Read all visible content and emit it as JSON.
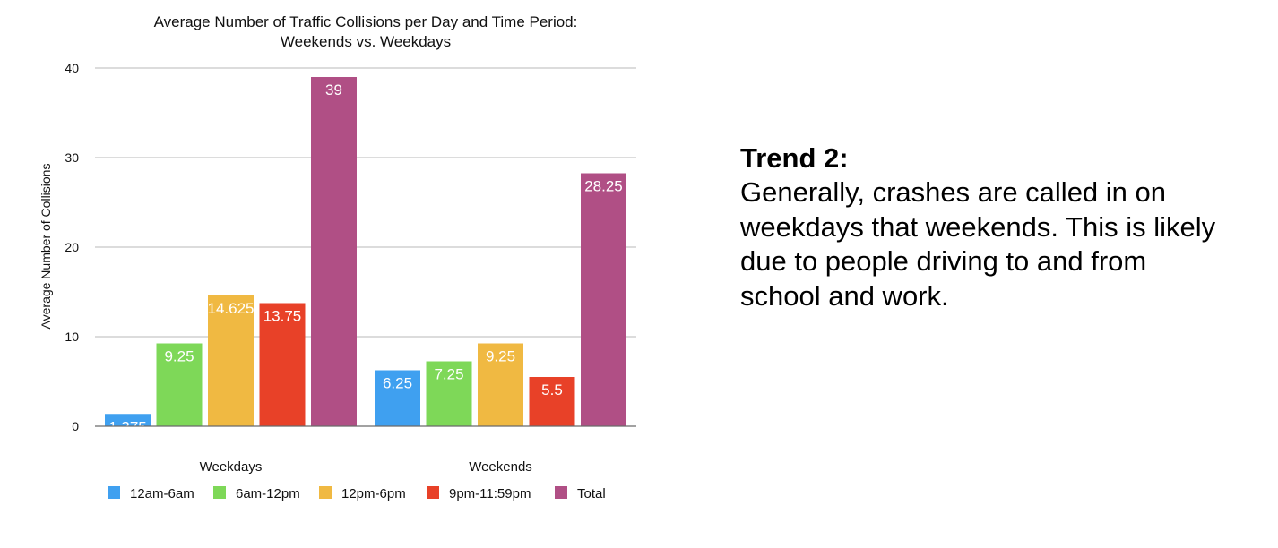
{
  "chart_data": {
    "type": "bar",
    "title": [
      "Average Number of Traffic Collisions per Day and Time Period:",
      "Weekends vs. Weekdays"
    ],
    "xlabel": "",
    "ylabel": "Average Number of Collisions",
    "ylim": [
      0,
      40
    ],
    "yticks": [
      0,
      10,
      20,
      30,
      40
    ],
    "grid": true,
    "legend_position": "bottom",
    "categories": [
      "Weekdays",
      "Weekends"
    ],
    "series": [
      {
        "name": "12am-6am",
        "color": "#3fa0f0",
        "values": [
          1.375,
          6.25
        ],
        "labels": [
          "1.375",
          "6.25"
        ]
      },
      {
        "name": "6am-12pm",
        "color": "#7ed858",
        "values": [
          9.25,
          7.25
        ],
        "labels": [
          "9.25",
          "7.25"
        ]
      },
      {
        "name": "12pm-6pm",
        "color": "#f0b942",
        "values": [
          14.625,
          9.25
        ],
        "labels": [
          "14.625",
          "9.25"
        ]
      },
      {
        "name": "9pm-11:59pm",
        "color": "#e84128",
        "values": [
          13.75,
          5.5
        ],
        "labels": [
          "13.75",
          "5.5"
        ]
      },
      {
        "name": "Total",
        "color": "#b04f85",
        "values": [
          39,
          28.25
        ],
        "labels": [
          "39",
          "28.25"
        ]
      }
    ]
  },
  "trend": {
    "heading": "Trend 2:",
    "lines": [
      "Generally, crashes are called in on",
      "weekdays that weekends. This is likely",
      "due to people driving to and from",
      "school and work."
    ]
  }
}
